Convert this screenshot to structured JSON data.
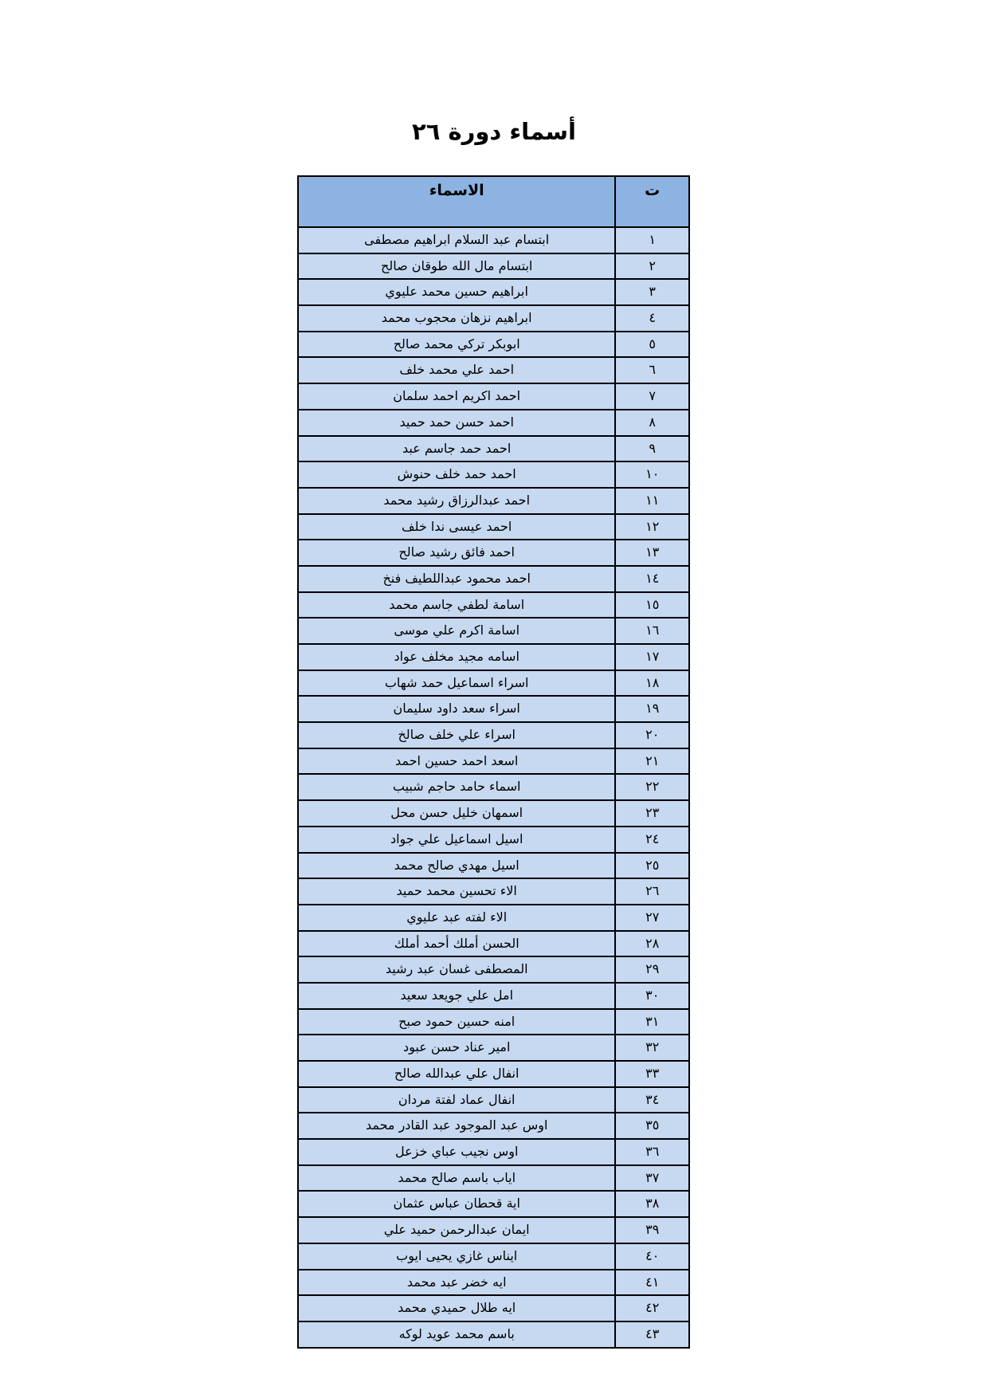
{
  "title": "أسماء دورة ٢٦",
  "table": {
    "headers": {
      "number": "ت",
      "names": "الاسماء"
    },
    "colors": {
      "header_bg": "#8db3e2",
      "row_bg": "#c6d9f1"
    },
    "rows": [
      {
        "n": "١",
        "name": "ابتسام عبد السلام ابراهيم مصطفى"
      },
      {
        "n": "٢",
        "name": "ابتسام مال الله طوقان صالح"
      },
      {
        "n": "٣",
        "name": "ابراهيم  حسين  محمد  عليوي"
      },
      {
        "n": "٤",
        "name": "ابراهيم نزهان محجوب محمد"
      },
      {
        "n": "٥",
        "name": "ابوبكر تركي محمد صالح"
      },
      {
        "n": "٦",
        "name": "احمد  علي  محمد  خلف"
      },
      {
        "n": "٧",
        "name": "احمد اكريم احمد سلمان"
      },
      {
        "n": "٨",
        "name": "احمد حسن حمد حميد"
      },
      {
        "n": "٩",
        "name": "احمد حمد جاسم عبد"
      },
      {
        "n": "١٠",
        "name": "احمد حمد خلف حنوش"
      },
      {
        "n": "١١",
        "name": "احمد عبدالرزاق رشيد محمد"
      },
      {
        "n": "١٢",
        "name": "احمد عيسى  ندا  خلف"
      },
      {
        "n": "١٣",
        "name": "احمد فائق رشيد صالح"
      },
      {
        "n": "١٤",
        "name": "احمد محمود عبداللطيف فنخ"
      },
      {
        "n": "١٥",
        "name": "اسامة  لطفي جاسم محمد"
      },
      {
        "n": "١٦",
        "name": "اسامة اكرم علي موسى"
      },
      {
        "n": "١٧",
        "name": "اسامه  مجيد  مخلف عواد"
      },
      {
        "n": "١٨",
        "name": "اسراء  اسماعيل حمد شهاب"
      },
      {
        "n": "١٩",
        "name": "اسراء سعد داود سليمان"
      },
      {
        "n": "٢٠",
        "name": "اسراء علي خلف صالخ"
      },
      {
        "n": "٢١",
        "name": "اسعد  احمد  حسين احمد"
      },
      {
        "n": "٢٢",
        "name": "اسماء حامد حاجم شبيب"
      },
      {
        "n": "٢٣",
        "name": "اسمهان خليل حسن محل"
      },
      {
        "n": "٢٤",
        "name": "اسيل  اسماعيل  علي جواد"
      },
      {
        "n": "٢٥",
        "name": "اسيل مهدي صالح محمد"
      },
      {
        "n": "٢٦",
        "name": "الاء  تحسين محمد حميد"
      },
      {
        "n": "٢٧",
        "name": "الاء لفته عبد عليوي"
      },
      {
        "n": "٢٨",
        "name": "الحسن أملك أحمد أملك"
      },
      {
        "n": "٢٩",
        "name": "المصطفى غسان عبد رشيد"
      },
      {
        "n": "٣٠",
        "name": "امل علي جويعد سعيد"
      },
      {
        "n": "٣١",
        "name": "امنه  حسين حمود صبح"
      },
      {
        "n": "٣٢",
        "name": "امير عناد  حسن عبود"
      },
      {
        "n": "٣٣",
        "name": "انفال  علي  عبدالله  صالح"
      },
      {
        "n": "٣٤",
        "name": "انفال عماد لفتة مردان"
      },
      {
        "n": "٣٥",
        "name": "اوس عبد الموجود عبد القادر  محمد"
      },
      {
        "n": "٣٦",
        "name": "اوس نجيب عباي خزعل"
      },
      {
        "n": "٣٧",
        "name": "اياب  باسم صالح محمد"
      },
      {
        "n": "٣٨",
        "name": "اية قحطان عباس عثمان"
      },
      {
        "n": "٣٩",
        "name": "ايمان  عبدالرحمن  حميد  علي"
      },
      {
        "n": "٤٠",
        "name": "ايناس  غازي يحيى ايوب"
      },
      {
        "n": "٤١",
        "name": "ايه  خضر  عبد  محمد"
      },
      {
        "n": "٤٢",
        "name": "ايه طلال حميدي محمد"
      },
      {
        "n": "٤٣",
        "name": "باسم محمد عويد  لوكه"
      }
    ]
  }
}
